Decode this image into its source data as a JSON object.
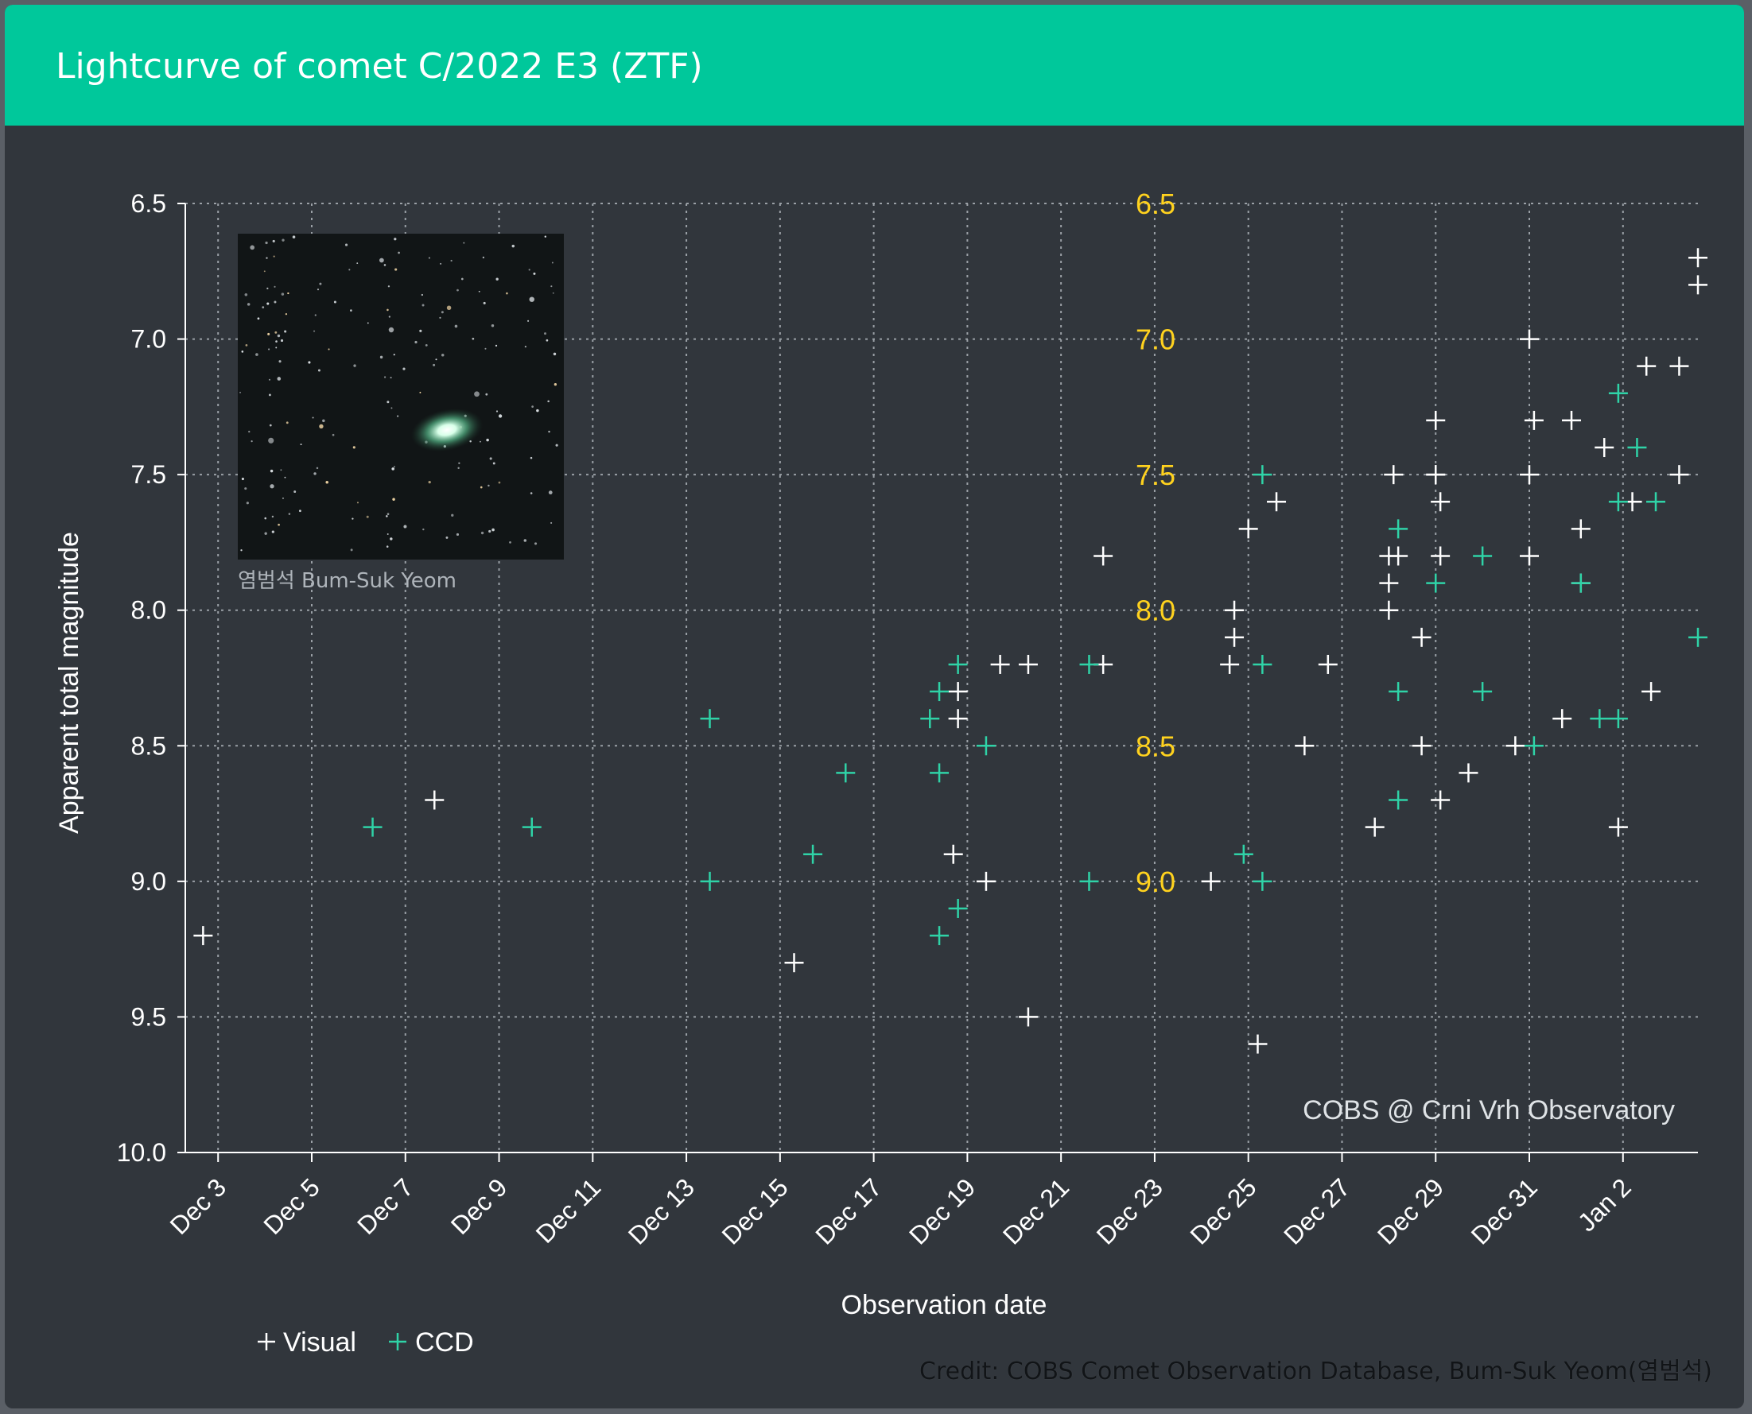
{
  "header": {
    "title": "Lightcurve of comet C/2022 E3 (ZTF)"
  },
  "colors": {
    "header_bg": "#00c89b",
    "panel_bg": "#31363c",
    "visual": "#ffffff",
    "ccd": "#2fd3a7",
    "inner_labels": "#ffd21e"
  },
  "inset": {
    "photo_caption": "염범석 Bum-Suk Yeom"
  },
  "watermark": "COBS @ Crni Vrh Observatory",
  "credit": "Credit: COBS Comet Observation Database, Bum-Suk Yeom(염범석)",
  "chart_data": {
    "type": "scatter",
    "title": "Lightcurve of comet C/2022 E3 (ZTF)",
    "xlabel": "Observation date",
    "ylabel": "Apparent total magnitude",
    "x_units": "days since Dec 3 00:00",
    "xlim": [
      -0.35,
      15.8
    ],
    "ylim": [
      6.5,
      10.0
    ],
    "y_inverted": true,
    "y_ticks": [
      "6.5",
      "7.0",
      "7.5",
      "8.0",
      "8.5",
      "9.0",
      "9.5",
      "10.0"
    ],
    "y_ticks_inner": [
      "6.5",
      "7.0",
      "7.5",
      "8.0",
      "8.5",
      "9.0"
    ],
    "x_ticks": [
      {
        "x": 0,
        "label": "Dec 3"
      },
      {
        "x": 1,
        "label": "Dec 5"
      },
      {
        "x": 2,
        "label": "Dec 7"
      },
      {
        "x": 3,
        "label": "Dec 9"
      },
      {
        "x": 4,
        "label": "Dec 11"
      },
      {
        "x": 5,
        "label": "Dec 13"
      },
      {
        "x": 6,
        "label": "Dec 15"
      },
      {
        "x": 7,
        "label": "Dec 17"
      },
      {
        "x": 8,
        "label": "Dec 19"
      },
      {
        "x": 9,
        "label": "Dec 21"
      },
      {
        "x": 10,
        "label": "Dec 23"
      },
      {
        "x": 11,
        "label": "Dec 25"
      },
      {
        "x": 12,
        "label": "Dec 27"
      },
      {
        "x": 13,
        "label": "Dec 29"
      },
      {
        "x": 14,
        "label": "Dec 31"
      },
      {
        "x": 15,
        "label": "Jan 2"
      }
    ],
    "legend_position": "bottom-left",
    "grid": true,
    "series": [
      {
        "name": "Visual",
        "marker": "+",
        "points": [
          [
            -0.16,
            9.2
          ],
          [
            2.31,
            8.7
          ],
          [
            6.15,
            9.3
          ],
          [
            7.85,
            8.9
          ],
          [
            7.9,
            8.3
          ],
          [
            7.9,
            8.4
          ],
          [
            8.2,
            9.0
          ],
          [
            8.35,
            8.2
          ],
          [
            8.65,
            9.5
          ],
          [
            8.65,
            8.2
          ],
          [
            9.45,
            7.8
          ],
          [
            9.45,
            8.2
          ],
          [
            10.6,
            9.0
          ],
          [
            10.85,
            8.0
          ],
          [
            10.85,
            8.1
          ],
          [
            10.8,
            8.2
          ],
          [
            11.0,
            7.7
          ],
          [
            11.1,
            9.6
          ],
          [
            11.3,
            7.6
          ],
          [
            11.6,
            8.5
          ],
          [
            11.85,
            8.2
          ],
          [
            12.35,
            8.8
          ],
          [
            12.5,
            7.9
          ],
          [
            12.5,
            8.0
          ],
          [
            12.5,
            7.8
          ],
          [
            12.55,
            7.5
          ],
          [
            12.6,
            7.8
          ],
          [
            12.85,
            8.1
          ],
          [
            12.85,
            8.5
          ],
          [
            13.0,
            7.3
          ],
          [
            13.0,
            7.5
          ],
          [
            13.0,
            7.5
          ],
          [
            13.05,
            7.6
          ],
          [
            13.05,
            7.8
          ],
          [
            13.05,
            8.7
          ],
          [
            13.35,
            8.6
          ],
          [
            13.85,
            8.5
          ],
          [
            14.0,
            7.0
          ],
          [
            14.0,
            7.8
          ],
          [
            14.0,
            7.5
          ],
          [
            14.05,
            7.3
          ],
          [
            14.35,
            8.4
          ],
          [
            14.45,
            7.3
          ],
          [
            14.55,
            7.7
          ],
          [
            14.55,
            7.9
          ],
          [
            14.8,
            7.4
          ],
          [
            14.95,
            8.8
          ],
          [
            15.1,
            7.6
          ],
          [
            15.25,
            7.1
          ],
          [
            15.3,
            8.3
          ],
          [
            15.6,
            7.1
          ],
          [
            15.6,
            7.5
          ],
          [
            15.8,
            6.7
          ],
          [
            15.8,
            6.8
          ]
        ]
      },
      {
        "name": "CCD",
        "marker": "+",
        "points": [
          [
            1.65,
            8.8
          ],
          [
            3.35,
            8.8
          ],
          [
            5.25,
            8.4
          ],
          [
            5.25,
            9.0
          ],
          [
            6.35,
            8.9
          ],
          [
            6.7,
            8.6
          ],
          [
            7.6,
            8.4
          ],
          [
            7.7,
            8.3
          ],
          [
            7.7,
            8.6
          ],
          [
            7.7,
            9.2
          ],
          [
            7.9,
            8.2
          ],
          [
            7.9,
            9.1
          ],
          [
            8.2,
            8.5
          ],
          [
            9.3,
            8.2
          ],
          [
            9.3,
            9.0
          ],
          [
            10.95,
            8.9
          ],
          [
            11.15,
            7.5
          ],
          [
            11.15,
            8.2
          ],
          [
            11.15,
            9.0
          ],
          [
            12.6,
            7.7
          ],
          [
            12.6,
            8.3
          ],
          [
            12.6,
            8.7
          ],
          [
            13.0,
            7.9
          ],
          [
            13.5,
            7.8
          ],
          [
            13.5,
            8.3
          ],
          [
            14.05,
            8.5
          ],
          [
            14.55,
            7.9
          ],
          [
            14.75,
            8.4
          ],
          [
            14.95,
            8.4
          ],
          [
            14.95,
            7.2
          ],
          [
            14.95,
            7.6
          ],
          [
            15.15,
            7.4
          ],
          [
            15.35,
            7.6
          ],
          [
            15.8,
            8.1
          ]
        ]
      }
    ]
  }
}
